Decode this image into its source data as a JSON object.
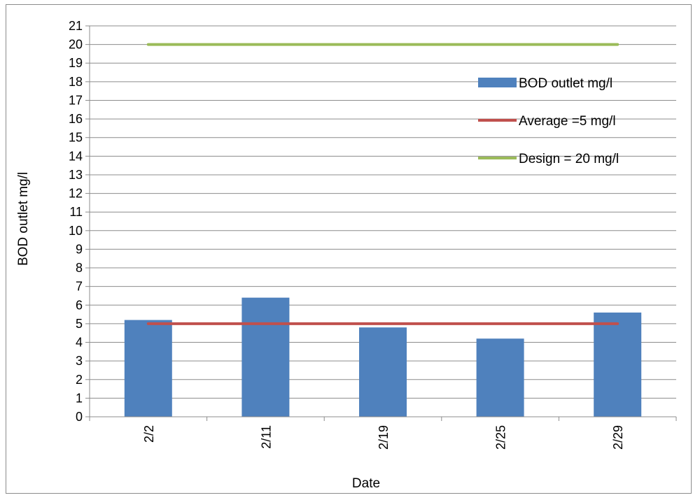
{
  "chart_data": {
    "type": "bar",
    "categories": [
      "2/2",
      "2/11",
      "2/19",
      "2/25",
      "2/29"
    ],
    "series": [
      {
        "name": "BOD outlet mg/l",
        "type": "bar",
        "color": "#4f81bd",
        "values": [
          5.2,
          6.4,
          4.8,
          4.2,
          5.6
        ]
      },
      {
        "name": "Average =5 mg/l",
        "type": "line",
        "color": "#c0504d",
        "values": [
          5,
          5,
          5,
          5,
          5
        ]
      },
      {
        "name": "Design = 20 mg/l",
        "type": "line",
        "color": "#9bbb59",
        "values": [
          20,
          20,
          20,
          20,
          20
        ]
      }
    ],
    "title": "",
    "xlabel": "Date",
    "ylabel": "BOD outlet mg/l",
    "ylim": [
      0,
      21
    ],
    "yticks": [
      "0",
      "1",
      "2",
      "3",
      "4",
      "5",
      "6",
      "7",
      "8",
      "9",
      "10",
      "11",
      "12",
      "13",
      "14",
      "15",
      "16",
      "17",
      "18",
      "19",
      "20",
      "21"
    ],
    "grid": true,
    "legend_position": "right"
  }
}
